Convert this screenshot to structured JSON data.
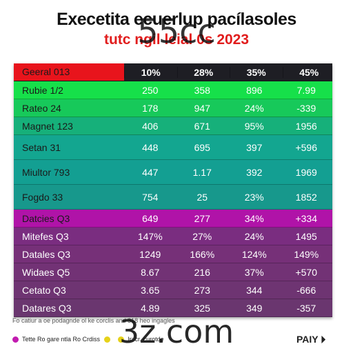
{
  "header": {
    "title": "Execetita  ecuerlup pacílasoles",
    "subtitle": "tutc  ngil  leial  0s 2023"
  },
  "watermark_top": "55cc",
  "watermark_bottom": "3z.com",
  "chart_data": {
    "type": "table",
    "columns": [
      "Geeral 013",
      "10%",
      "28%",
      "35%",
      "45%"
    ],
    "rows": [
      {
        "label": "Rubie 1/2",
        "values": [
          "250",
          "358",
          "896",
          "7.99"
        ],
        "color": "#16e04a"
      },
      {
        "label": "Rateo 24",
        "values": [
          "178",
          "947",
          "24%",
          "-339"
        ],
        "color": "#17c95a"
      },
      {
        "label": "Magnet 123",
        "values": [
          "406",
          "671",
          "95%",
          "1956"
        ],
        "color": "#16b07a"
      },
      {
        "label": "Setan 31",
        "values": [
          "448",
          "695",
          "397",
          "+596"
        ],
        "color": "#13a690"
      },
      {
        "label": "Miultor 793",
        "values": [
          "447",
          "1.17",
          "392",
          "1969"
        ],
        "color": "#139f92"
      },
      {
        "label": "Fogdo 33",
        "values": [
          "754",
          "25",
          "23%",
          "1852"
        ],
        "color": "#17988c"
      },
      {
        "label": "Datcies Q3",
        "values": [
          "649",
          "277",
          "34%",
          "+334"
        ],
        "color": "#b013a8"
      },
      {
        "label": "Mitefes Q3",
        "values": [
          "147%",
          "27%",
          "24%",
          "1495"
        ],
        "color": "#7a2d80"
      },
      {
        "label": "Datales Q3",
        "values": [
          "1249",
          "166%",
          "124%",
          "149%"
        ],
        "color": "#763078"
      },
      {
        "label": "Widaes Q5",
        "values": [
          "8.67",
          "216",
          "37%",
          "+570"
        ],
        "color": "#723275"
      },
      {
        "label": "Cetato Q3",
        "values": [
          "3.65",
          "273",
          "344",
          "-666"
        ],
        "color": "#6e3472"
      },
      {
        "label": "Datares Q3",
        "values": [
          "4.89",
          "325",
          "349",
          "-357"
        ],
        "color": "#6a366f"
      }
    ]
  },
  "footnote": "Fo catiur a oe podagnde ol ke corclis         and 318 heo ingagles",
  "legend": {
    "items": [
      {
        "label": "Tette Ro gare ntla Ro Crdiss",
        "color": "#c21cb0"
      },
      {
        "label": "",
        "color": "#e6d21a"
      },
      {
        "label": "Ir: cr. curotde",
        "color": "#e6d21a"
      }
    ]
  },
  "brand": "PAIY"
}
